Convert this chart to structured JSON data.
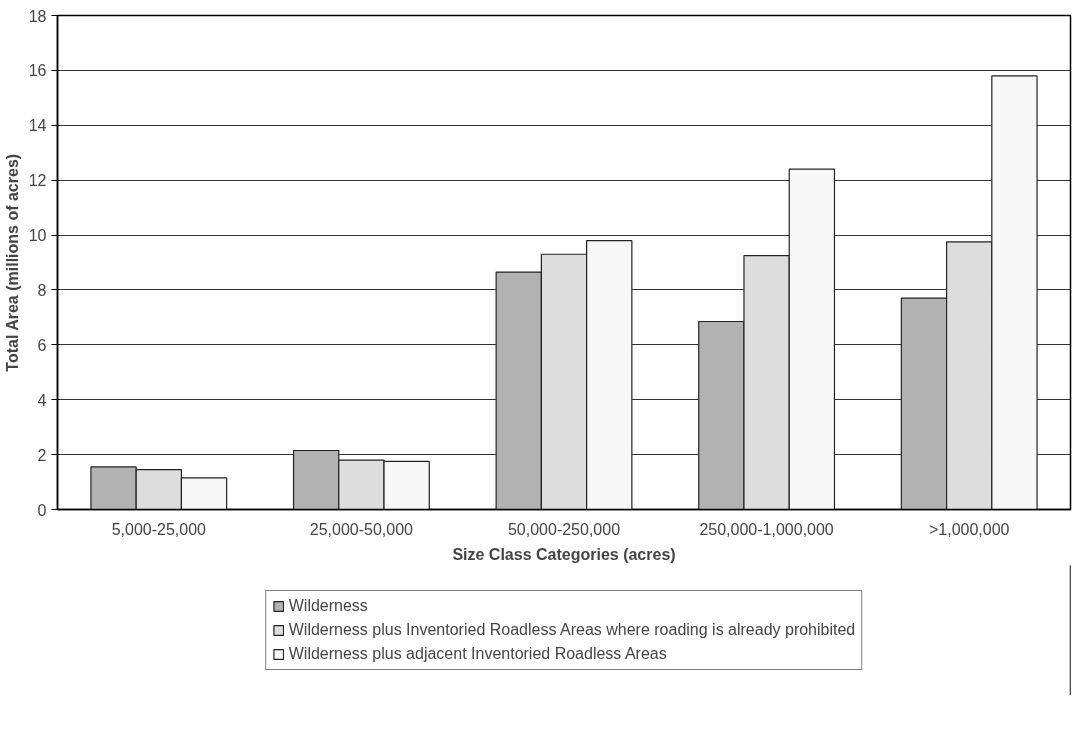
{
  "chart_data": {
    "type": "bar",
    "xlabel": "Size Class Categories (acres)",
    "ylabel": "Total Area (millions of acres)",
    "categories": [
      "5,000-25,000",
      "25,000-50,000",
      "50,000-250,000",
      "250,000-1,000,000",
      ">1,000,000"
    ],
    "series": [
      {
        "name": "Wilderness",
        "color": "#b2b2b2",
        "values": [
          1.55,
          2.15,
          8.65,
          6.85,
          7.7
        ]
      },
      {
        "name": "Wilderness plus Inventoried Roadless Areas where roading is already prohibited",
        "color": "#dddddd",
        "values": [
          1.45,
          1.8,
          9.3,
          9.25,
          9.75
        ]
      },
      {
        "name": "Wilderness plus adjacent Inventoried Roadless Areas",
        "color": "#f7f7f7",
        "values": [
          1.15,
          1.75,
          9.8,
          12.4,
          15.8
        ]
      }
    ],
    "ylim": [
      0,
      18
    ],
    "yticks": [
      0,
      2,
      4,
      6,
      8,
      10,
      12,
      14,
      16,
      18
    ],
    "grid": "y",
    "legend": "bottom"
  }
}
